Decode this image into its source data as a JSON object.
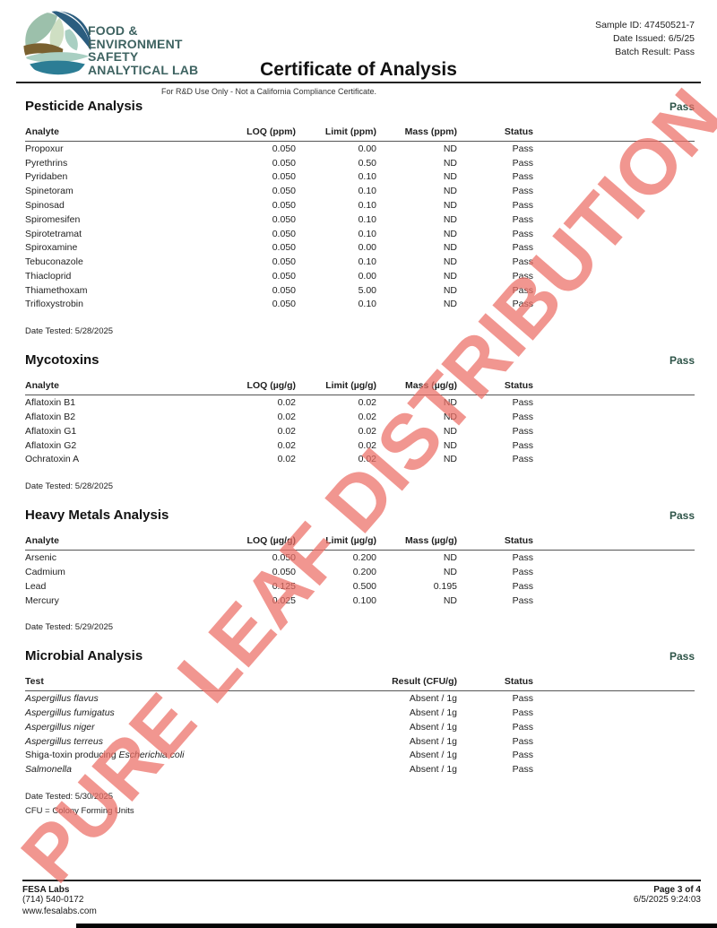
{
  "watermark": {
    "text": "PURE LEAF DISTRIBUTION",
    "color": "#ec6f66"
  },
  "header": {
    "lab_name_lines": [
      "FOOD &",
      "ENVIRONMENT",
      "SAFETY",
      "ANALYTICAL LAB"
    ],
    "title": "Certificate of Analysis",
    "subtitle": "For R&D Use Only - Not a California Compliance Certificate.",
    "meta_lines": [
      "Sample ID: 47450521-7",
      "Date Issued: 6/5/25",
      "Batch Result: Pass"
    ]
  },
  "sections": [
    {
      "title": "Pesticide Analysis",
      "status": "Pass",
      "columns": [
        "Analyte",
        "LOQ (ppm)",
        "Limit (ppm)",
        "Mass (ppm)",
        "Status"
      ],
      "rows": [
        [
          "Propoxur",
          "0.050",
          "0.00",
          "ND",
          "Pass"
        ],
        [
          "Pyrethrins",
          "0.050",
          "0.50",
          "ND",
          "Pass"
        ],
        [
          "Pyridaben",
          "0.050",
          "0.10",
          "ND",
          "Pass"
        ],
        [
          "Spinetoram",
          "0.050",
          "0.10",
          "ND",
          "Pass"
        ],
        [
          "Spinosad",
          "0.050",
          "0.10",
          "ND",
          "Pass"
        ],
        [
          "Spiromesifen",
          "0.050",
          "0.10",
          "ND",
          "Pass"
        ],
        [
          "Spirotetramat",
          "0.050",
          "0.10",
          "ND",
          "Pass"
        ],
        [
          "Spiroxamine",
          "0.050",
          "0.00",
          "ND",
          "Pass"
        ],
        [
          "Tebuconazole",
          "0.050",
          "0.10",
          "ND",
          "Pass"
        ],
        [
          "Thiacloprid",
          "0.050",
          "0.00",
          "ND",
          "Pass"
        ],
        [
          "Thiamethoxam",
          "0.050",
          "5.00",
          "ND",
          "Pass"
        ],
        [
          "Trifloxystrobin",
          "0.050",
          "0.10",
          "ND",
          "Pass"
        ]
      ],
      "date_tested": "Date Tested: 5/28/2025"
    },
    {
      "title": "Mycotoxins",
      "status": "Pass",
      "columns": [
        "Analyte",
        "LOQ (µg/g)",
        "Limit (µg/g)",
        "Mass (µg/g)",
        "Status"
      ],
      "rows": [
        [
          "Aflatoxin B1",
          "0.02",
          "0.02",
          "ND",
          "Pass"
        ],
        [
          "Aflatoxin B2",
          "0.02",
          "0.02",
          "ND",
          "Pass"
        ],
        [
          "Aflatoxin G1",
          "0.02",
          "0.02",
          "ND",
          "Pass"
        ],
        [
          "Aflatoxin G2",
          "0.02",
          "0.02",
          "ND",
          "Pass"
        ],
        [
          "Ochratoxin A",
          "0.02",
          "0.02",
          "ND",
          "Pass"
        ]
      ],
      "date_tested": "Date Tested: 5/28/2025"
    },
    {
      "title": "Heavy Metals Analysis",
      "status": "Pass",
      "columns": [
        "Analyte",
        "LOQ (µg/g)",
        "Limit (µg/g)",
        "Mass (µg/g)",
        "Status"
      ],
      "rows": [
        [
          "Arsenic",
          "0.050",
          "0.200",
          "ND",
          "Pass"
        ],
        [
          "Cadmium",
          "0.050",
          "0.200",
          "ND",
          "Pass"
        ],
        [
          "Lead",
          "0.125",
          "0.500",
          "0.195",
          "Pass"
        ],
        [
          "Mercury",
          "0.025",
          "0.100",
          "ND",
          "Pass"
        ]
      ],
      "date_tested": "Date Tested: 5/29/2025"
    },
    {
      "title": "Microbial Analysis",
      "status": "Pass",
      "columns": [
        "Test",
        "Result (CFU/g)",
        "Status"
      ],
      "rows": [
        [
          [
            {
              "text": "Aspergillus flavus",
              "italic": true
            }
          ],
          "Absent / 1g",
          "Pass"
        ],
        [
          [
            {
              "text": "Aspergillus fumigatus",
              "italic": true
            }
          ],
          "Absent / 1g",
          "Pass"
        ],
        [
          [
            {
              "text": "Aspergillus niger",
              "italic": true
            }
          ],
          "Absent / 1g",
          "Pass"
        ],
        [
          [
            {
              "text": "Aspergillus terreus",
              "italic": true
            }
          ],
          "Absent / 1g",
          "Pass"
        ],
        [
          [
            {
              "text": "Shiga-toxin producing ",
              "italic": false
            },
            {
              "text": "Escherichia coli",
              "italic": true
            }
          ],
          "Absent / 1g",
          "Pass"
        ],
        [
          [
            {
              "text": "Salmonella",
              "italic": true
            }
          ],
          "Absent / 1g",
          "Pass"
        ]
      ],
      "date_tested": "Date Tested: 5/30/2025",
      "note": "CFU = Colony Forming Units"
    }
  ],
  "footer": {
    "company": "FESA Labs",
    "phone": "(714) 540-0172",
    "website": "www.fesalabs.com",
    "page": "Page 3 of 4",
    "datetime": "6/5/2025 9:24:03"
  }
}
